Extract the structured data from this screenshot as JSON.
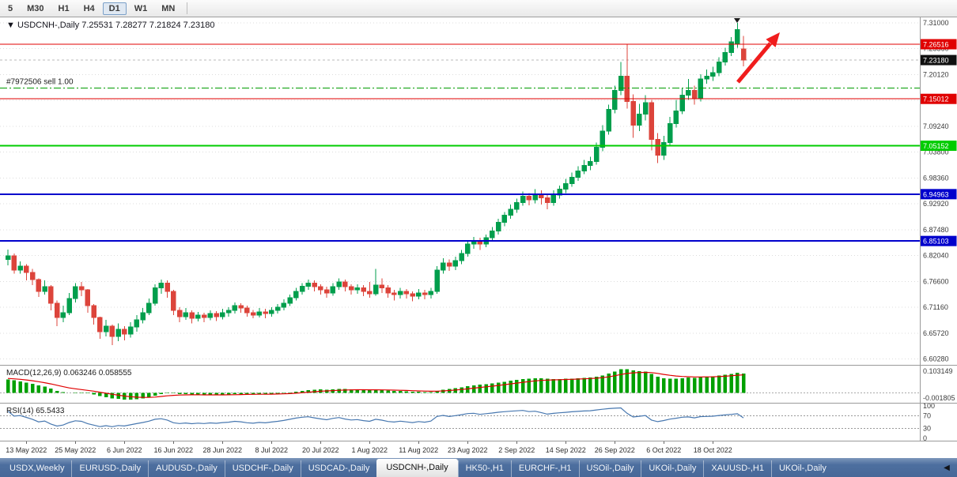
{
  "colors": {
    "up": "#009e4c",
    "down": "#dc443b",
    "macd_hist": "#00a000",
    "macd_signal": "#e00000",
    "rsi_line": "#4878b0",
    "arrow": "#f01d1d",
    "grid": "#dcdcdc",
    "axis_text": "#3a3a3a",
    "tabbar_bg": "#4a6c9e"
  },
  "toolbar": {
    "periods": [
      "5",
      "M30",
      "H1",
      "H4",
      "D1",
      "W1",
      "MN"
    ],
    "active": "D1"
  },
  "chart_title": {
    "marker": "▼",
    "symbol_period": "USDCNH-,Daily",
    "ohlc": "7.25531 7.28277 7.21824 7.23180"
  },
  "order": {
    "label": "#7972506 sell 1.00",
    "price": 7.173,
    "color": "#009b00"
  },
  "current_price": {
    "label": "7.23180",
    "price": 7.2318,
    "badge_color": "#101010"
  },
  "levels": [
    {
      "label": "7.26516",
      "price": 7.26516,
      "color": "#e00000",
      "width": 1
    },
    {
      "label": "7.15012",
      "price": 7.15012,
      "color": "#e00000",
      "width": 1
    },
    {
      "label": "7.05152",
      "price": 7.05152,
      "color": "#00cc00",
      "width": 2
    },
    {
      "label": "6.94963",
      "price": 6.94963,
      "color": "#0000cc",
      "width": 2
    },
    {
      "label": "6.85103",
      "price": 6.85103,
      "color": "#0000cc",
      "width": 2
    }
  ],
  "main_axis": {
    "ticks": [
      "7.31000",
      "7.25560",
      "7.20120",
      "7.14680",
      "7.09240",
      "7.03800",
      "6.98360",
      "6.92920",
      "6.87480",
      "6.82040",
      "6.76600",
      "6.71160",
      "6.65720",
      "6.60280"
    ]
  },
  "macd": {
    "header": "MACD(12,26,9)",
    "values": "0.063246 0.058555",
    "max_label": "0.103149",
    "min_label": "-0.001805"
  },
  "rsi": {
    "header": "RSI(14)",
    "value": "65.5433",
    "levels": [
      {
        "label": "100",
        "v": 100,
        "dashed": false
      },
      {
        "label": "70",
        "v": 70,
        "dashed": true
      },
      {
        "label": "30",
        "v": 30,
        "dashed": true
      },
      {
        "label": "0",
        "v": 0,
        "dashed": false
      }
    ]
  },
  "tabs": {
    "items": [
      "USDX,Weekly",
      "EURUSD-,Daily",
      "AUDUSD-,Daily",
      "USDCHF-,Daily",
      "USDCAD-,Daily",
      "USDCNH-,Daily",
      "HK50-,H1",
      "EURCHF-,H1",
      "USOil-,Daily",
      "UKOil-,Daily",
      "XAUUSD-,H1",
      "UKOil-,Daily"
    ],
    "active_index": 5,
    "scroll_arrow": "◀"
  },
  "chart_data": {
    "type": "candlestick",
    "symbol": "USDCNH-",
    "timeframe": "Daily",
    "title": "USDCNH-,Daily",
    "ohlc_last": {
      "open": 7.25531,
      "high": 7.28277,
      "low": 7.21824,
      "close": 7.2318
    },
    "x_labels": [
      "13 May 2022",
      "25 May 2022",
      "6 Jun 2022",
      "16 Jun 2022",
      "28 Jun 2022",
      "8 Jul 2022",
      "20 Jul 2022",
      "1 Aug 2022",
      "11 Aug 2022",
      "23 Aug 2022",
      "2 Sep 2022",
      "14 Sep 2022",
      "26 Sep 2022",
      "6 Oct 2022",
      "18 Oct 2022"
    ],
    "label_indices": [
      3,
      11,
      19,
      27,
      35,
      43,
      51,
      59,
      67,
      75,
      83,
      91,
      99,
      107,
      115
    ],
    "indicator_warmup_closes": [
      6.555,
      6.568,
      6.582,
      6.596,
      6.61,
      6.622,
      6.636,
      6.65,
      6.664,
      6.676,
      6.69,
      6.704,
      6.716,
      6.73,
      6.742,
      6.734,
      6.748,
      6.762,
      6.774,
      6.788,
      6.78,
      6.794,
      6.804,
      6.792,
      6.8,
      6.81,
      6.806,
      6.814,
      6.82,
      6.812
    ],
    "candles": [
      [
        6.812,
        6.833,
        6.8,
        6.82
      ],
      [
        6.82,
        6.825,
        6.782,
        6.79
      ],
      [
        6.79,
        6.808,
        6.782,
        6.798
      ],
      [
        6.798,
        6.802,
        6.768,
        6.785
      ],
      [
        6.785,
        6.792,
        6.758,
        6.77
      ],
      [
        6.77,
        6.772,
        6.733,
        6.745
      ],
      [
        6.745,
        6.768,
        6.738,
        6.755
      ],
      [
        6.755,
        6.758,
        6.705,
        6.72
      ],
      [
        6.72,
        6.726,
        6.672,
        6.69
      ],
      [
        6.69,
        6.715,
        6.68,
        6.7
      ],
      [
        6.7,
        6.742,
        6.695,
        6.73
      ],
      [
        6.73,
        6.762,
        6.722,
        6.755
      ],
      [
        6.755,
        6.765,
        6.735,
        6.748
      ],
      [
        6.748,
        6.75,
        6.7,
        6.715
      ],
      [
        6.715,
        6.718,
        6.675,
        6.69
      ],
      [
        6.69,
        6.692,
        6.645,
        6.66
      ],
      [
        6.66,
        6.685,
        6.65,
        6.672
      ],
      [
        6.672,
        6.675,
        6.632,
        6.65
      ],
      [
        6.65,
        6.678,
        6.64,
        6.665
      ],
      [
        6.665,
        6.672,
        6.642,
        6.655
      ],
      [
        6.655,
        6.68,
        6.648,
        6.67
      ],
      [
        6.67,
        6.695,
        6.66,
        6.685
      ],
      [
        6.685,
        6.71,
        6.678,
        6.7
      ],
      [
        6.7,
        6.73,
        6.695,
        6.72
      ],
      [
        6.72,
        6.76,
        6.715,
        6.752
      ],
      [
        6.752,
        6.77,
        6.74,
        6.762
      ],
      [
        6.762,
        6.768,
        6.732,
        6.745
      ],
      [
        6.745,
        6.748,
        6.695,
        6.705
      ],
      [
        6.705,
        6.712,
        6.68,
        6.692
      ],
      [
        6.692,
        6.71,
        6.685,
        6.7
      ],
      [
        6.7,
        6.705,
        6.678,
        6.688
      ],
      [
        6.688,
        6.702,
        6.682,
        6.695
      ],
      [
        6.695,
        6.7,
        6.68,
        6.69
      ],
      [
        6.69,
        6.705,
        6.684,
        6.698
      ],
      [
        6.698,
        6.703,
        6.683,
        6.692
      ],
      [
        6.692,
        6.708,
        6.686,
        6.7
      ],
      [
        6.7,
        6.712,
        6.692,
        6.705
      ],
      [
        6.705,
        6.722,
        6.698,
        6.715
      ],
      [
        6.715,
        6.72,
        6.7,
        6.71
      ],
      [
        6.71,
        6.715,
        6.692,
        6.7
      ],
      [
        6.7,
        6.706,
        6.688,
        6.695
      ],
      [
        6.695,
        6.71,
        6.69,
        6.702
      ],
      [
        6.702,
        6.708,
        6.688,
        6.698
      ],
      [
        6.698,
        6.712,
        6.692,
        6.705
      ],
      [
        6.705,
        6.718,
        6.698,
        6.712
      ],
      [
        6.712,
        6.728,
        6.705,
        6.72
      ],
      [
        6.72,
        6.738,
        6.714,
        6.732
      ],
      [
        6.732,
        6.752,
        6.726,
        6.745
      ],
      [
        6.745,
        6.762,
        6.738,
        6.756
      ],
      [
        6.756,
        6.77,
        6.748,
        6.762
      ],
      [
        6.762,
        6.768,
        6.745,
        6.755
      ],
      [
        6.755,
        6.76,
        6.738,
        6.748
      ],
      [
        6.748,
        6.755,
        6.732,
        6.742
      ],
      [
        6.742,
        6.762,
        6.736,
        6.755
      ],
      [
        6.755,
        6.772,
        6.748,
        6.765
      ],
      [
        6.765,
        6.77,
        6.745,
        6.755
      ],
      [
        6.755,
        6.76,
        6.738,
        6.748
      ],
      [
        6.748,
        6.76,
        6.74,
        6.752
      ],
      [
        6.752,
        6.758,
        6.735,
        6.745
      ],
      [
        6.745,
        6.765,
        6.732,
        6.74
      ],
      [
        6.74,
        6.792,
        6.736,
        6.758
      ],
      [
        6.758,
        6.772,
        6.742,
        6.752
      ],
      [
        6.752,
        6.758,
        6.732,
        6.742
      ],
      [
        6.742,
        6.748,
        6.726,
        6.738
      ],
      [
        6.738,
        6.752,
        6.73,
        6.745
      ],
      [
        6.745,
        6.75,
        6.73,
        6.74
      ],
      [
        6.74,
        6.745,
        6.724,
        6.735
      ],
      [
        6.735,
        6.75,
        6.728,
        6.742
      ],
      [
        6.742,
        6.748,
        6.728,
        6.738
      ],
      [
        6.738,
        6.752,
        6.73,
        6.745
      ],
      [
        6.745,
        6.798,
        6.74,
        6.79
      ],
      [
        6.79,
        6.815,
        6.782,
        6.805
      ],
      [
        6.805,
        6.812,
        6.788,
        6.798
      ],
      [
        6.798,
        6.818,
        6.79,
        6.81
      ],
      [
        6.81,
        6.832,
        6.802,
        6.825
      ],
      [
        6.825,
        6.852,
        6.818,
        6.845
      ],
      [
        6.845,
        6.86,
        6.835,
        6.852
      ],
      [
        6.852,
        6.858,
        6.832,
        6.845
      ],
      [
        6.845,
        6.865,
        6.838,
        6.858
      ],
      [
        6.858,
        6.88,
        6.85,
        6.872
      ],
      [
        6.872,
        6.898,
        6.865,
        6.89
      ],
      [
        6.89,
        6.912,
        6.882,
        6.905
      ],
      [
        6.905,
        6.928,
        6.898,
        6.918
      ],
      [
        6.918,
        6.94,
        6.91,
        6.932
      ],
      [
        6.932,
        6.955,
        6.925,
        6.945
      ],
      [
        6.945,
        6.952,
        6.926,
        6.938
      ],
      [
        6.938,
        6.96,
        6.93,
        6.95
      ],
      [
        6.95,
        6.958,
        6.928,
        6.942
      ],
      [
        6.942,
        6.948,
        6.918,
        6.932
      ],
      [
        6.932,
        6.958,
        6.925,
        6.948
      ],
      [
        6.948,
        6.968,
        6.94,
        6.96
      ],
      [
        6.96,
        6.982,
        6.952,
        6.972
      ],
      [
        6.972,
        6.995,
        6.965,
        6.985
      ],
      [
        6.985,
        7.008,
        6.978,
        6.998
      ],
      [
        6.998,
        7.022,
        6.992,
        7.01
      ],
      [
        7.01,
        7.028,
        7.0,
        7.018
      ],
      [
        7.018,
        7.058,
        7.012,
        7.048
      ],
      [
        7.048,
        7.095,
        7.04,
        7.082
      ],
      [
        7.082,
        7.138,
        7.075,
        7.128
      ],
      [
        7.128,
        7.178,
        7.12,
        7.168
      ],
      [
        7.168,
        7.228,
        7.158,
        7.198
      ],
      [
        7.198,
        7.265,
        7.13,
        7.145
      ],
      [
        7.145,
        7.16,
        7.068,
        7.095
      ],
      [
        7.095,
        7.14,
        7.082,
        7.118
      ],
      [
        7.118,
        7.158,
        7.105,
        7.142
      ],
      [
        7.142,
        7.148,
        7.042,
        7.065
      ],
      [
        7.065,
        7.078,
        7.015,
        7.032
      ],
      [
        7.032,
        7.072,
        7.022,
        7.058
      ],
      [
        7.058,
        7.112,
        7.05,
        7.098
      ],
      [
        7.098,
        7.148,
        7.09,
        7.125
      ],
      [
        7.125,
        7.172,
        7.118,
        7.158
      ],
      [
        7.158,
        7.192,
        7.148,
        7.168
      ],
      [
        7.168,
        7.178,
        7.138,
        7.152
      ],
      [
        7.152,
        7.202,
        7.145,
        7.192
      ],
      [
        7.192,
        7.212,
        7.182,
        7.198
      ],
      [
        7.198,
        7.218,
        7.188,
        7.205
      ],
      [
        7.205,
        7.238,
        7.198,
        7.228
      ],
      [
        7.228,
        7.258,
        7.22,
        7.248
      ],
      [
        7.248,
        7.28,
        7.24,
        7.27
      ],
      [
        7.265,
        7.31,
        7.258,
        7.296
      ],
      [
        7.25531,
        7.28277,
        7.21824,
        7.2318
      ]
    ]
  }
}
